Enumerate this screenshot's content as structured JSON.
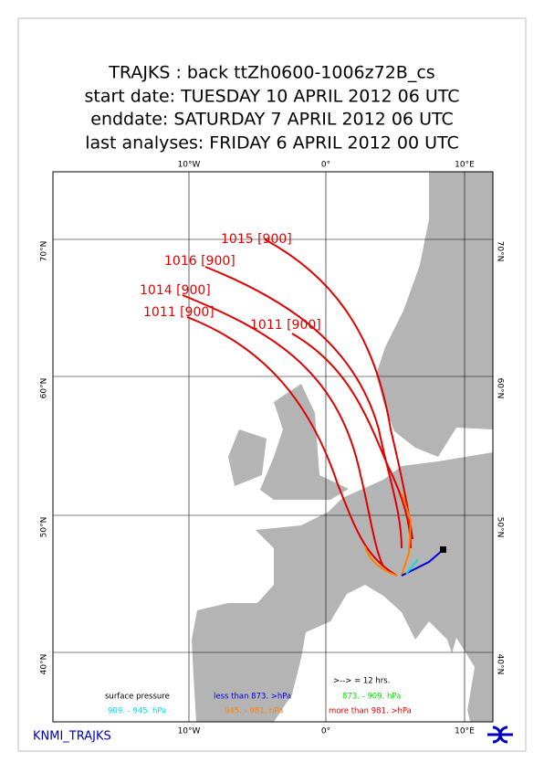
{
  "header": {
    "lines": [
      "TRAJKS : back ttZh0600-1006z72B_cs",
      "start date:  TUESDAY   10 APRIL     2012 06 UTC",
      "enddate:  SATURDAY   7 APRIL     2012 06 UTC",
      "last analyses:  FRIDAY    6 APRIL    2012 00 UTC"
    ]
  },
  "map": {
    "lon_labels": [
      "10°W",
      "0°",
      "10°E"
    ],
    "lat_labels": [
      "70°N",
      "60°N",
      "50°N",
      "40°N"
    ],
    "trajectory_labels": [
      "1015 [900]",
      "1016 [900]",
      "1014 [900]",
      "1011 [900]",
      "1011 [900]"
    ]
  },
  "legend": {
    "arrow_note": ">--> = 12 hrs.",
    "surface_pressure": "surface pressure",
    "less_than": "less than  873. >hPa",
    "range_1": "873. -  909. hPa",
    "range_2": "909. -   945. hPa",
    "range_3": "945. -  981. hPa",
    "more_than": "more than  981. >hPa"
  },
  "footer": {
    "brand": "KNMI_TRAJKS"
  }
}
